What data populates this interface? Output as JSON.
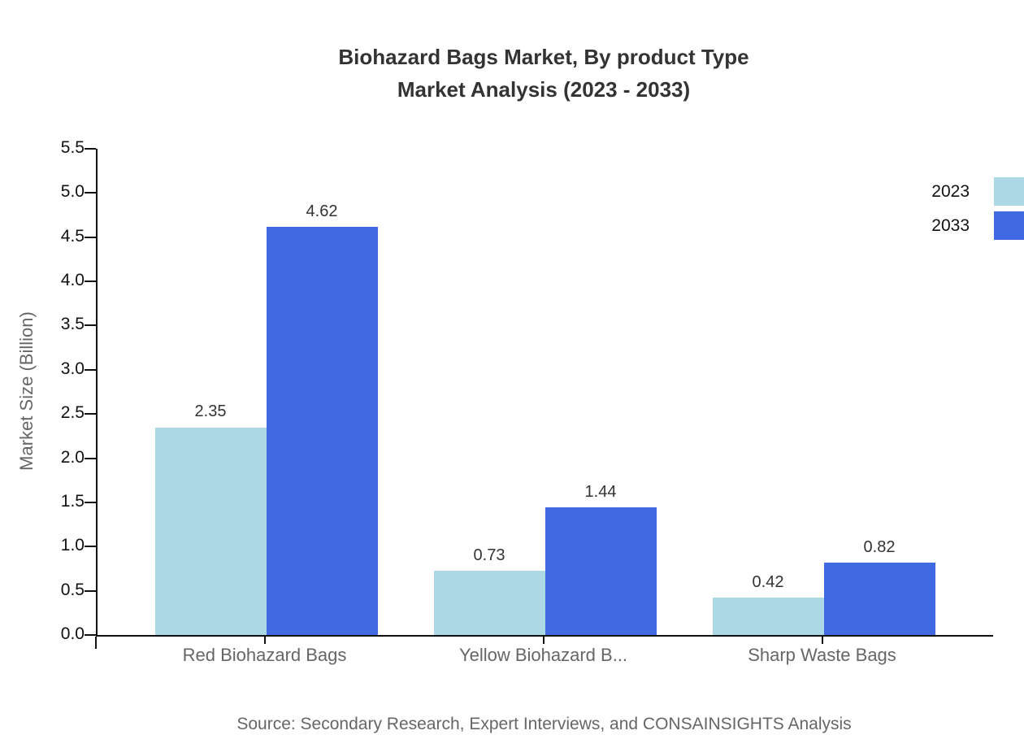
{
  "title": {
    "line1": "Biohazard Bags Market, By product Type",
    "line2": "Market Analysis (2023 - 2033)"
  },
  "source": "Source: Secondary Research, Expert Interviews, and CONSAINSIGHTS Analysis",
  "chart_data": {
    "type": "bar",
    "title": "Biohazard Bags Market, By product Type — Market Analysis (2023 - 2033)",
    "xlabel": "",
    "ylabel": "Market Size (Billion)",
    "categories": [
      "Red Biohazard Bags",
      "Yellow Biohazard B...",
      "Sharp Waste Bags"
    ],
    "series": [
      {
        "name": "2023",
        "color": "#ADD8E6",
        "values": [
          2.35,
          0.73,
          0.42
        ],
        "labels": [
          "2.35",
          "0.73",
          "0.42"
        ]
      },
      {
        "name": "2033",
        "color": "#4169E1",
        "values": [
          4.62,
          1.44,
          0.82
        ],
        "labels": [
          "4.62",
          "1.44",
          "0.82"
        ]
      }
    ],
    "ylim": [
      0,
      5.5
    ],
    "ytick_labels": [
      "0.0",
      "0.5",
      "1.0",
      "1.5",
      "2.0",
      "2.5",
      "3.0",
      "3.5",
      "4.0",
      "4.5",
      "5.0",
      "5.5"
    ],
    "grid": false,
    "legend_position": "top-right",
    "axis_color": "#111111"
  }
}
